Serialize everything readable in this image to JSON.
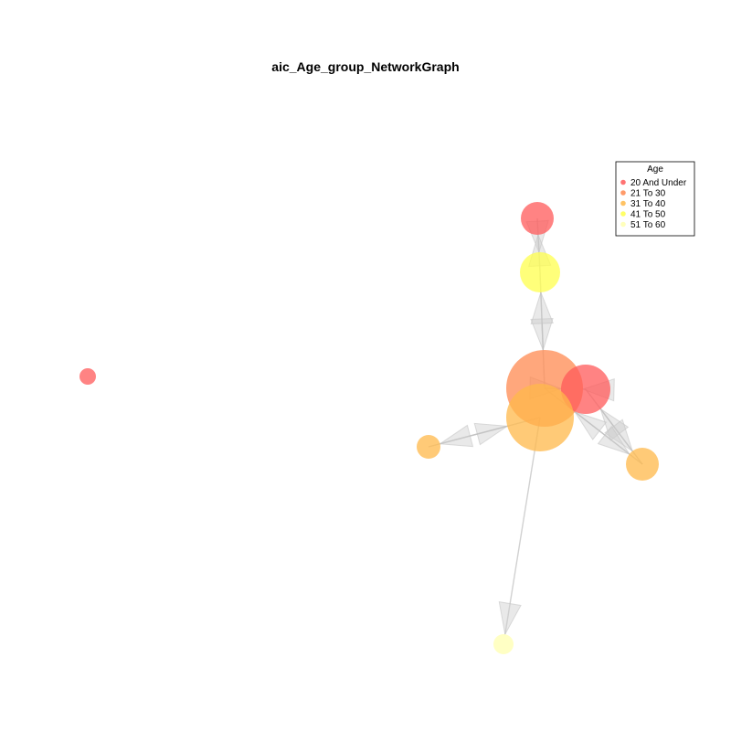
{
  "title": "aic_Age_group_NetworkGraph",
  "legend": {
    "title": "Age",
    "entries": [
      {
        "label": "20 And Under",
        "color": "#ff5a5a"
      },
      {
        "label": "21 To 30",
        "color": "#ff8a50"
      },
      {
        "label": "31 To 40",
        "color": "#ffb84a"
      },
      {
        "label": "41 To 50",
        "color": "#ffff4d"
      },
      {
        "label": "51 To 60",
        "color": "#ffffb0"
      }
    ]
  },
  "nodes": [
    {
      "id": "n1",
      "group": "20 And Under"
    },
    {
      "id": "n2",
      "group": "41 To 50"
    },
    {
      "id": "n3",
      "group": "21 To 30"
    },
    {
      "id": "n4",
      "group": "20 And Under"
    },
    {
      "id": "n5",
      "group": "31 To 40"
    },
    {
      "id": "n6",
      "group": "31 To 40"
    },
    {
      "id": "n7",
      "group": "31 To 40"
    },
    {
      "id": "n8",
      "group": "51 To 60"
    },
    {
      "id": "n9",
      "group": "20 And Under"
    }
  ],
  "edges": [
    {
      "from": "n1",
      "to": "n2"
    },
    {
      "from": "n2",
      "to": "n1"
    },
    {
      "from": "n2",
      "to": "n3"
    },
    {
      "from": "n3",
      "to": "n2"
    },
    {
      "from": "n4",
      "to": "n3"
    },
    {
      "from": "n3",
      "to": "n4"
    },
    {
      "from": "n6",
      "to": "n5"
    },
    {
      "from": "n5",
      "to": "n6"
    },
    {
      "from": "n7",
      "to": "n4"
    },
    {
      "from": "n4",
      "to": "n7"
    },
    {
      "from": "n7",
      "to": "n3"
    },
    {
      "from": "n5",
      "to": "n8"
    },
    {
      "from": "n3",
      "to": "n7"
    }
  ]
}
